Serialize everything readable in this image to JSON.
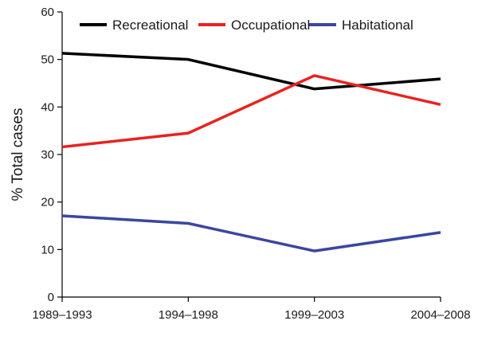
{
  "chart_data": {
    "type": "line",
    "categories": [
      "1989–1993",
      "1994–1998",
      "1999–2003",
      "2004–2008"
    ],
    "series": [
      {
        "name": "Recreational",
        "values": [
          51.3,
          50.0,
          43.8,
          45.9
        ],
        "color": "#000000"
      },
      {
        "name": "Occupational",
        "values": [
          31.6,
          34.5,
          46.6,
          40.5
        ],
        "color": "#e8231f"
      },
      {
        "name": "Habitational",
        "values": [
          17.1,
          15.5,
          9.7,
          13.6
        ],
        "color": "#3a46a0"
      }
    ],
    "ylabel": "% Total cases",
    "ylim": [
      0,
      60
    ],
    "yticks": [
      0,
      10,
      20,
      30,
      40,
      50,
      60
    ],
    "grid": false,
    "legend_position": "top"
  }
}
